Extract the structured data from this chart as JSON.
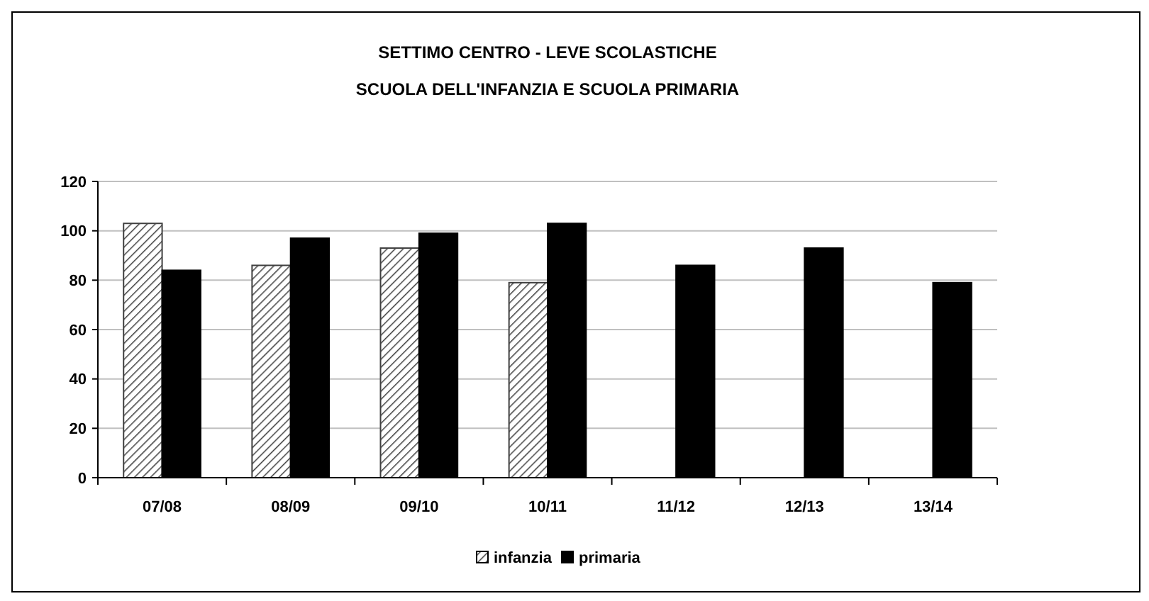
{
  "chart_data": {
    "type": "bar",
    "title": "SETTIMO CENTRO - LEVE SCOLASTICHE",
    "subtitle": "SCUOLA DELL'INFANZIA E SCUOLA PRIMARIA",
    "categories": [
      "07/08",
      "08/09",
      "09/10",
      "10/11",
      "11/12",
      "12/13",
      "13/14"
    ],
    "series": [
      {
        "name": "infanzia",
        "color": "#404040",
        "values": [
          103,
          86,
          93,
          79,
          null,
          null,
          null
        ]
      },
      {
        "name": "primaria",
        "color": "#000000",
        "values": [
          84,
          97,
          99,
          103,
          86,
          93,
          79
        ]
      }
    ],
    "ylim": [
      0,
      120
    ],
    "yticks": [
      0,
      20,
      40,
      60,
      80,
      100,
      120
    ],
    "grid": "y",
    "legend": "bottom"
  }
}
